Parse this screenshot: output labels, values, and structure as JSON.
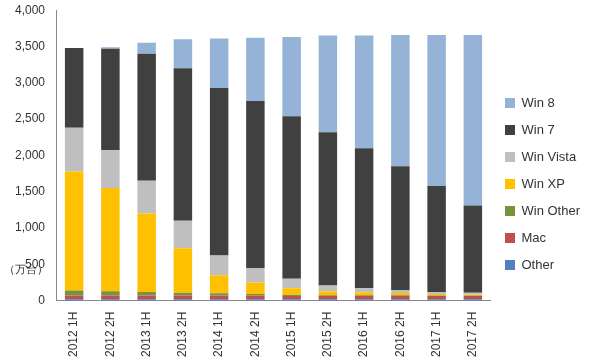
{
  "chart_data": {
    "type": "bar",
    "stacked": true,
    "ylabel": "（万台）",
    "categories": [
      "2012 1H",
      "2012 2H",
      "2013 1H",
      "2013 2H",
      "2014 1H",
      "2014 2H",
      "2015 1H",
      "2015 2H",
      "2016 1H",
      "2016 2H",
      "2017 1H",
      "2017 2H"
    ],
    "series": [
      {
        "name": "Other",
        "color": "#4f81bd",
        "values": [
          20,
          20,
          20,
          20,
          20,
          20,
          20,
          20,
          20,
          20,
          20,
          20
        ]
      },
      {
        "name": "Mac",
        "color": "#c0504d",
        "values": [
          50,
          50,
          50,
          50,
          50,
          50,
          45,
          45,
          45,
          45,
          45,
          45
        ]
      },
      {
        "name": "Win Other",
        "color": "#77933c",
        "values": [
          70,
          60,
          50,
          40,
          30,
          20,
          15,
          10,
          10,
          10,
          5,
          5
        ]
      },
      {
        "name": "Win XP",
        "color": "#ffc000",
        "values": [
          1640,
          1420,
          1080,
          610,
          250,
          160,
          90,
          55,
          40,
          30,
          20,
          15
        ]
      },
      {
        "name": "Win Vista",
        "color": "#bfbfbf",
        "values": [
          600,
          520,
          450,
          380,
          270,
          200,
          130,
          80,
          55,
          40,
          30,
          25
        ]
      },
      {
        "name": "Win 7",
        "color": "#404040",
        "values": [
          1100,
          1400,
          1750,
          2100,
          2310,
          2300,
          2240,
          2110,
          1930,
          1705,
          1460,
          1200
        ]
      },
      {
        "name": "Win 8",
        "color": "#95b3d7",
        "values": [
          0,
          20,
          150,
          400,
          680,
          870,
          1090,
          1330,
          1550,
          1810,
          2080,
          2350
        ]
      }
    ],
    "ylim": [
      0,
      4000
    ],
    "yticks": [
      0,
      500,
      {
        "value": 1000,
        "label": "1,000"
      },
      {
        "value": 1500,
        "label": "1,500"
      },
      {
        "value": 2000,
        "label": "2,000"
      },
      {
        "value": 2500,
        "label": "2,500"
      },
      {
        "value": 3000,
        "label": "3,000"
      },
      {
        "value": 3500,
        "label": "3,500"
      },
      {
        "value": 4000,
        "label": "4,000"
      }
    ],
    "grid": false,
    "legend": "right"
  }
}
